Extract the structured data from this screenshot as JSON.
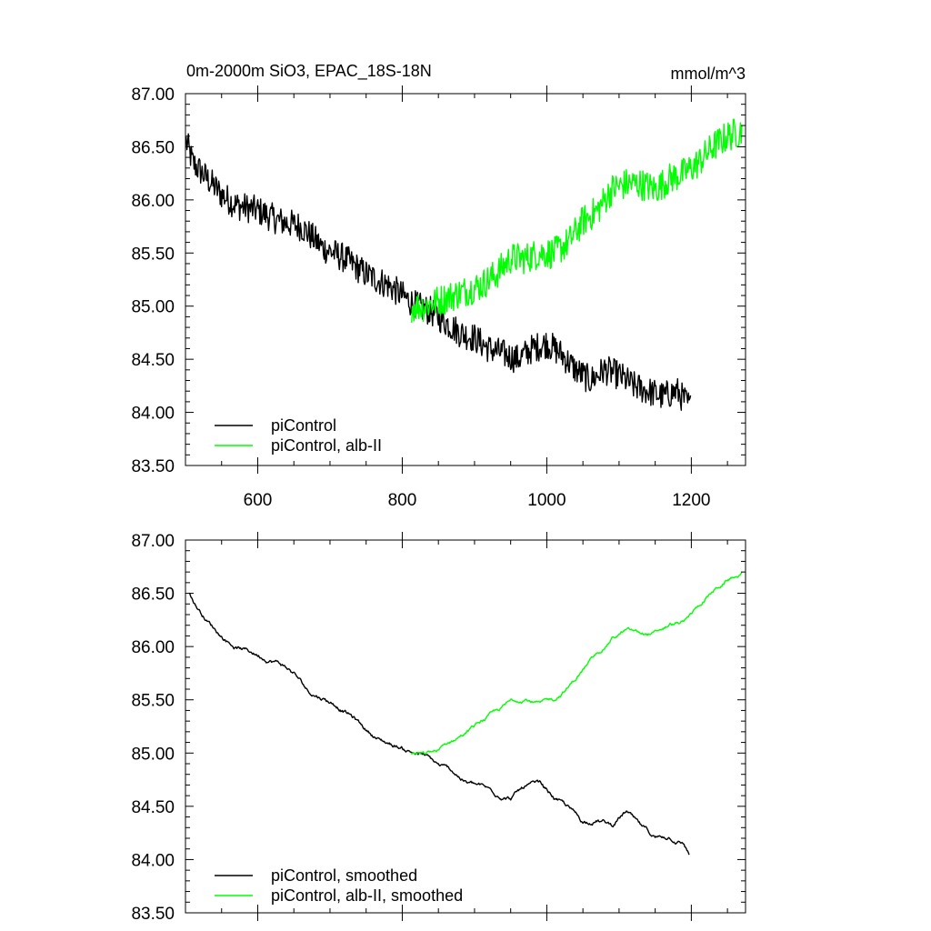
{
  "chart_data": [
    {
      "type": "line",
      "title": "0m-2000m SiO3, EPAC_18S-18N",
      "units": "mmol/m^3",
      "xlim": [
        500,
        1275
      ],
      "ylim": [
        83.5,
        87.0
      ],
      "xticks": [
        600,
        800,
        1000,
        1200
      ],
      "xtick_labels": [
        "600",
        "800",
        "1000",
        "1200"
      ],
      "yticks": [
        83.5,
        84.0,
        84.5,
        85.0,
        85.5,
        86.0,
        86.5,
        87.0
      ],
      "ytick_labels": [
        "83.50",
        "84.00",
        "84.50",
        "85.00",
        "85.50",
        "86.00",
        "86.50",
        "87.00"
      ],
      "legend_position": "bottom-left",
      "series": [
        {
          "name": "piControl",
          "color": "#000000",
          "x": [
            501,
            510,
            530,
            550,
            570,
            600,
            630,
            660,
            690,
            720,
            750,
            780,
            800,
            820,
            840,
            860,
            880,
            900,
            920,
            940,
            960,
            980,
            1000,
            1020,
            1040,
            1060,
            1080,
            1100,
            1120,
            1140,
            1160,
            1180,
            1199
          ],
          "y": [
            86.55,
            86.35,
            86.2,
            86.05,
            85.95,
            85.9,
            85.8,
            85.75,
            85.55,
            85.45,
            85.3,
            85.2,
            85.1,
            85.0,
            84.95,
            84.85,
            84.75,
            84.7,
            84.6,
            84.55,
            84.5,
            84.6,
            84.65,
            84.55,
            84.4,
            84.3,
            84.4,
            84.35,
            84.25,
            84.2,
            84.15,
            84.2,
            84.05
          ],
          "noise": 0.14
        },
        {
          "name": "piControl, alb-II",
          "color": "#00ff00",
          "x": [
            812,
            830,
            850,
            870,
            890,
            910,
            930,
            950,
            970,
            990,
            1010,
            1030,
            1050,
            1070,
            1090,
            1110,
            1130,
            1150,
            1170,
            1190,
            1210,
            1230,
            1250,
            1270
          ],
          "y": [
            85.0,
            85.0,
            85.05,
            85.1,
            85.15,
            85.2,
            85.3,
            85.45,
            85.45,
            85.5,
            85.5,
            85.6,
            85.8,
            85.9,
            86.1,
            86.15,
            86.15,
            86.1,
            86.2,
            86.25,
            86.35,
            86.5,
            86.6,
            86.65
          ],
          "noise": 0.15
        }
      ]
    },
    {
      "type": "line",
      "title": "",
      "xlim": [
        500,
        1275
      ],
      "ylim": [
        83.5,
        87.0
      ],
      "xticks": [
        600,
        800,
        1000,
        1200
      ],
      "yticks": [
        83.5,
        84.0,
        84.5,
        85.0,
        85.5,
        86.0,
        86.5,
        87.0
      ],
      "ytick_labels": [
        "83.50",
        "84.00",
        "84.50",
        "85.00",
        "85.50",
        "86.00",
        "86.50",
        "87.00"
      ],
      "legend_position": "bottom-left",
      "series": [
        {
          "name": "piControl, smoothed",
          "color": "#000000",
          "x": [
            505,
            515,
            530,
            550,
            570,
            590,
            610,
            630,
            650,
            670,
            690,
            710,
            730,
            750,
            770,
            790,
            810,
            830,
            850,
            870,
            890,
            910,
            930,
            950,
            970,
            990,
            1010,
            1030,
            1050,
            1070,
            1090,
            1110,
            1130,
            1150,
            1170,
            1190,
            1197
          ],
          "y": [
            86.5,
            86.38,
            86.25,
            86.1,
            86.0,
            85.95,
            85.9,
            85.85,
            85.75,
            85.58,
            85.52,
            85.45,
            85.35,
            85.22,
            85.12,
            85.07,
            85.02,
            84.98,
            84.88,
            84.82,
            84.72,
            84.68,
            84.62,
            84.58,
            84.68,
            84.7,
            84.58,
            84.48,
            84.35,
            84.38,
            84.32,
            84.45,
            84.3,
            84.2,
            84.22,
            84.15,
            84.05
          ],
          "noise": 0.04
        },
        {
          "name": "piControl, alb-II, smoothed",
          "color": "#00ff00",
          "x": [
            812,
            830,
            850,
            870,
            890,
            910,
            930,
            950,
            970,
            990,
            1010,
            1030,
            1050,
            1070,
            1090,
            1110,
            1130,
            1150,
            1170,
            1190,
            1210,
            1230,
            1250,
            1270
          ],
          "y": [
            85.0,
            84.98,
            85.02,
            85.12,
            85.2,
            85.3,
            85.38,
            85.48,
            85.52,
            85.46,
            85.5,
            85.62,
            85.78,
            85.92,
            86.08,
            86.15,
            86.12,
            86.12,
            86.2,
            86.22,
            86.38,
            86.52,
            86.62,
            86.68
          ],
          "noise": 0.035
        }
      ]
    }
  ]
}
